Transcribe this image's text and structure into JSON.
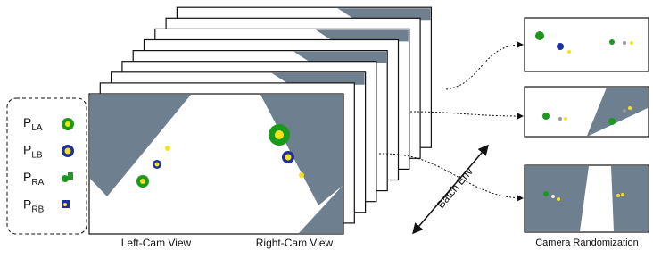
{
  "legend": {
    "items": [
      {
        "base": "P",
        "sub": "LA"
      },
      {
        "base": "P",
        "sub": "LB"
      },
      {
        "base": "P",
        "sub": "RA"
      },
      {
        "base": "P",
        "sub": "RB"
      }
    ]
  },
  "views": {
    "left": "Left-Cam View",
    "right": "Right-Cam View"
  },
  "arrow_label": "Batch Env",
  "randomization_label": "Camera Randomization"
}
